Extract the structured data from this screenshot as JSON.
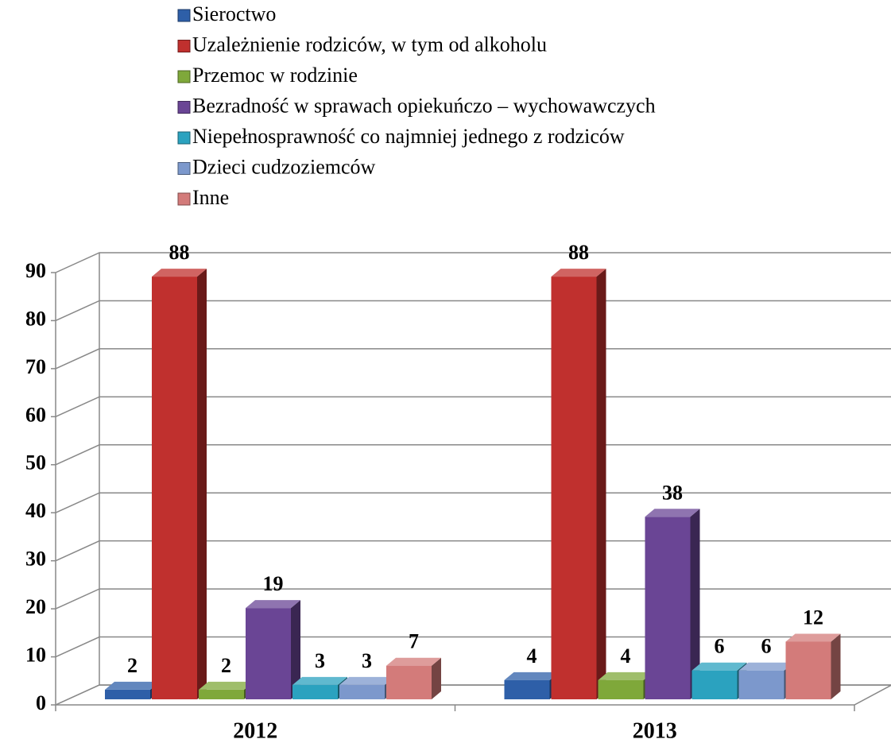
{
  "chart_data": {
    "type": "bar3d",
    "categories": [
      "2012",
      "2013"
    ],
    "series": [
      {
        "name": "Sieroctwo",
        "color": "#2e5fa8",
        "values": [
          2,
          4
        ]
      },
      {
        "name": "Uzależnienie rodziców, w tym od alkoholu",
        "color": "#c0302e",
        "values": [
          88,
          88
        ]
      },
      {
        "name": "Przemoc w rodzinie",
        "color": "#7fa83a",
        "values": [
          2,
          4
        ]
      },
      {
        "name": "Bezradność w sprawach opiekuńczo – wychowawczych",
        "color": "#6a4595",
        "values": [
          19,
          38
        ]
      },
      {
        "name": "Niepełnosprawność co najmniej jednego z rodziców",
        "color": "#2ba2bf",
        "values": [
          3,
          6
        ]
      },
      {
        "name": "Dzieci cudzoziemców",
        "color": "#7c98cc",
        "values": [
          3,
          6
        ]
      },
      {
        "name": "Inne",
        "color": "#d37b7a",
        "values": [
          7,
          12
        ]
      }
    ],
    "ylim": [
      0,
      90
    ],
    "yticks": [
      0,
      10,
      20,
      30,
      40,
      50,
      60,
      70,
      80,
      90
    ],
    "grid": true,
    "legend": "top"
  }
}
